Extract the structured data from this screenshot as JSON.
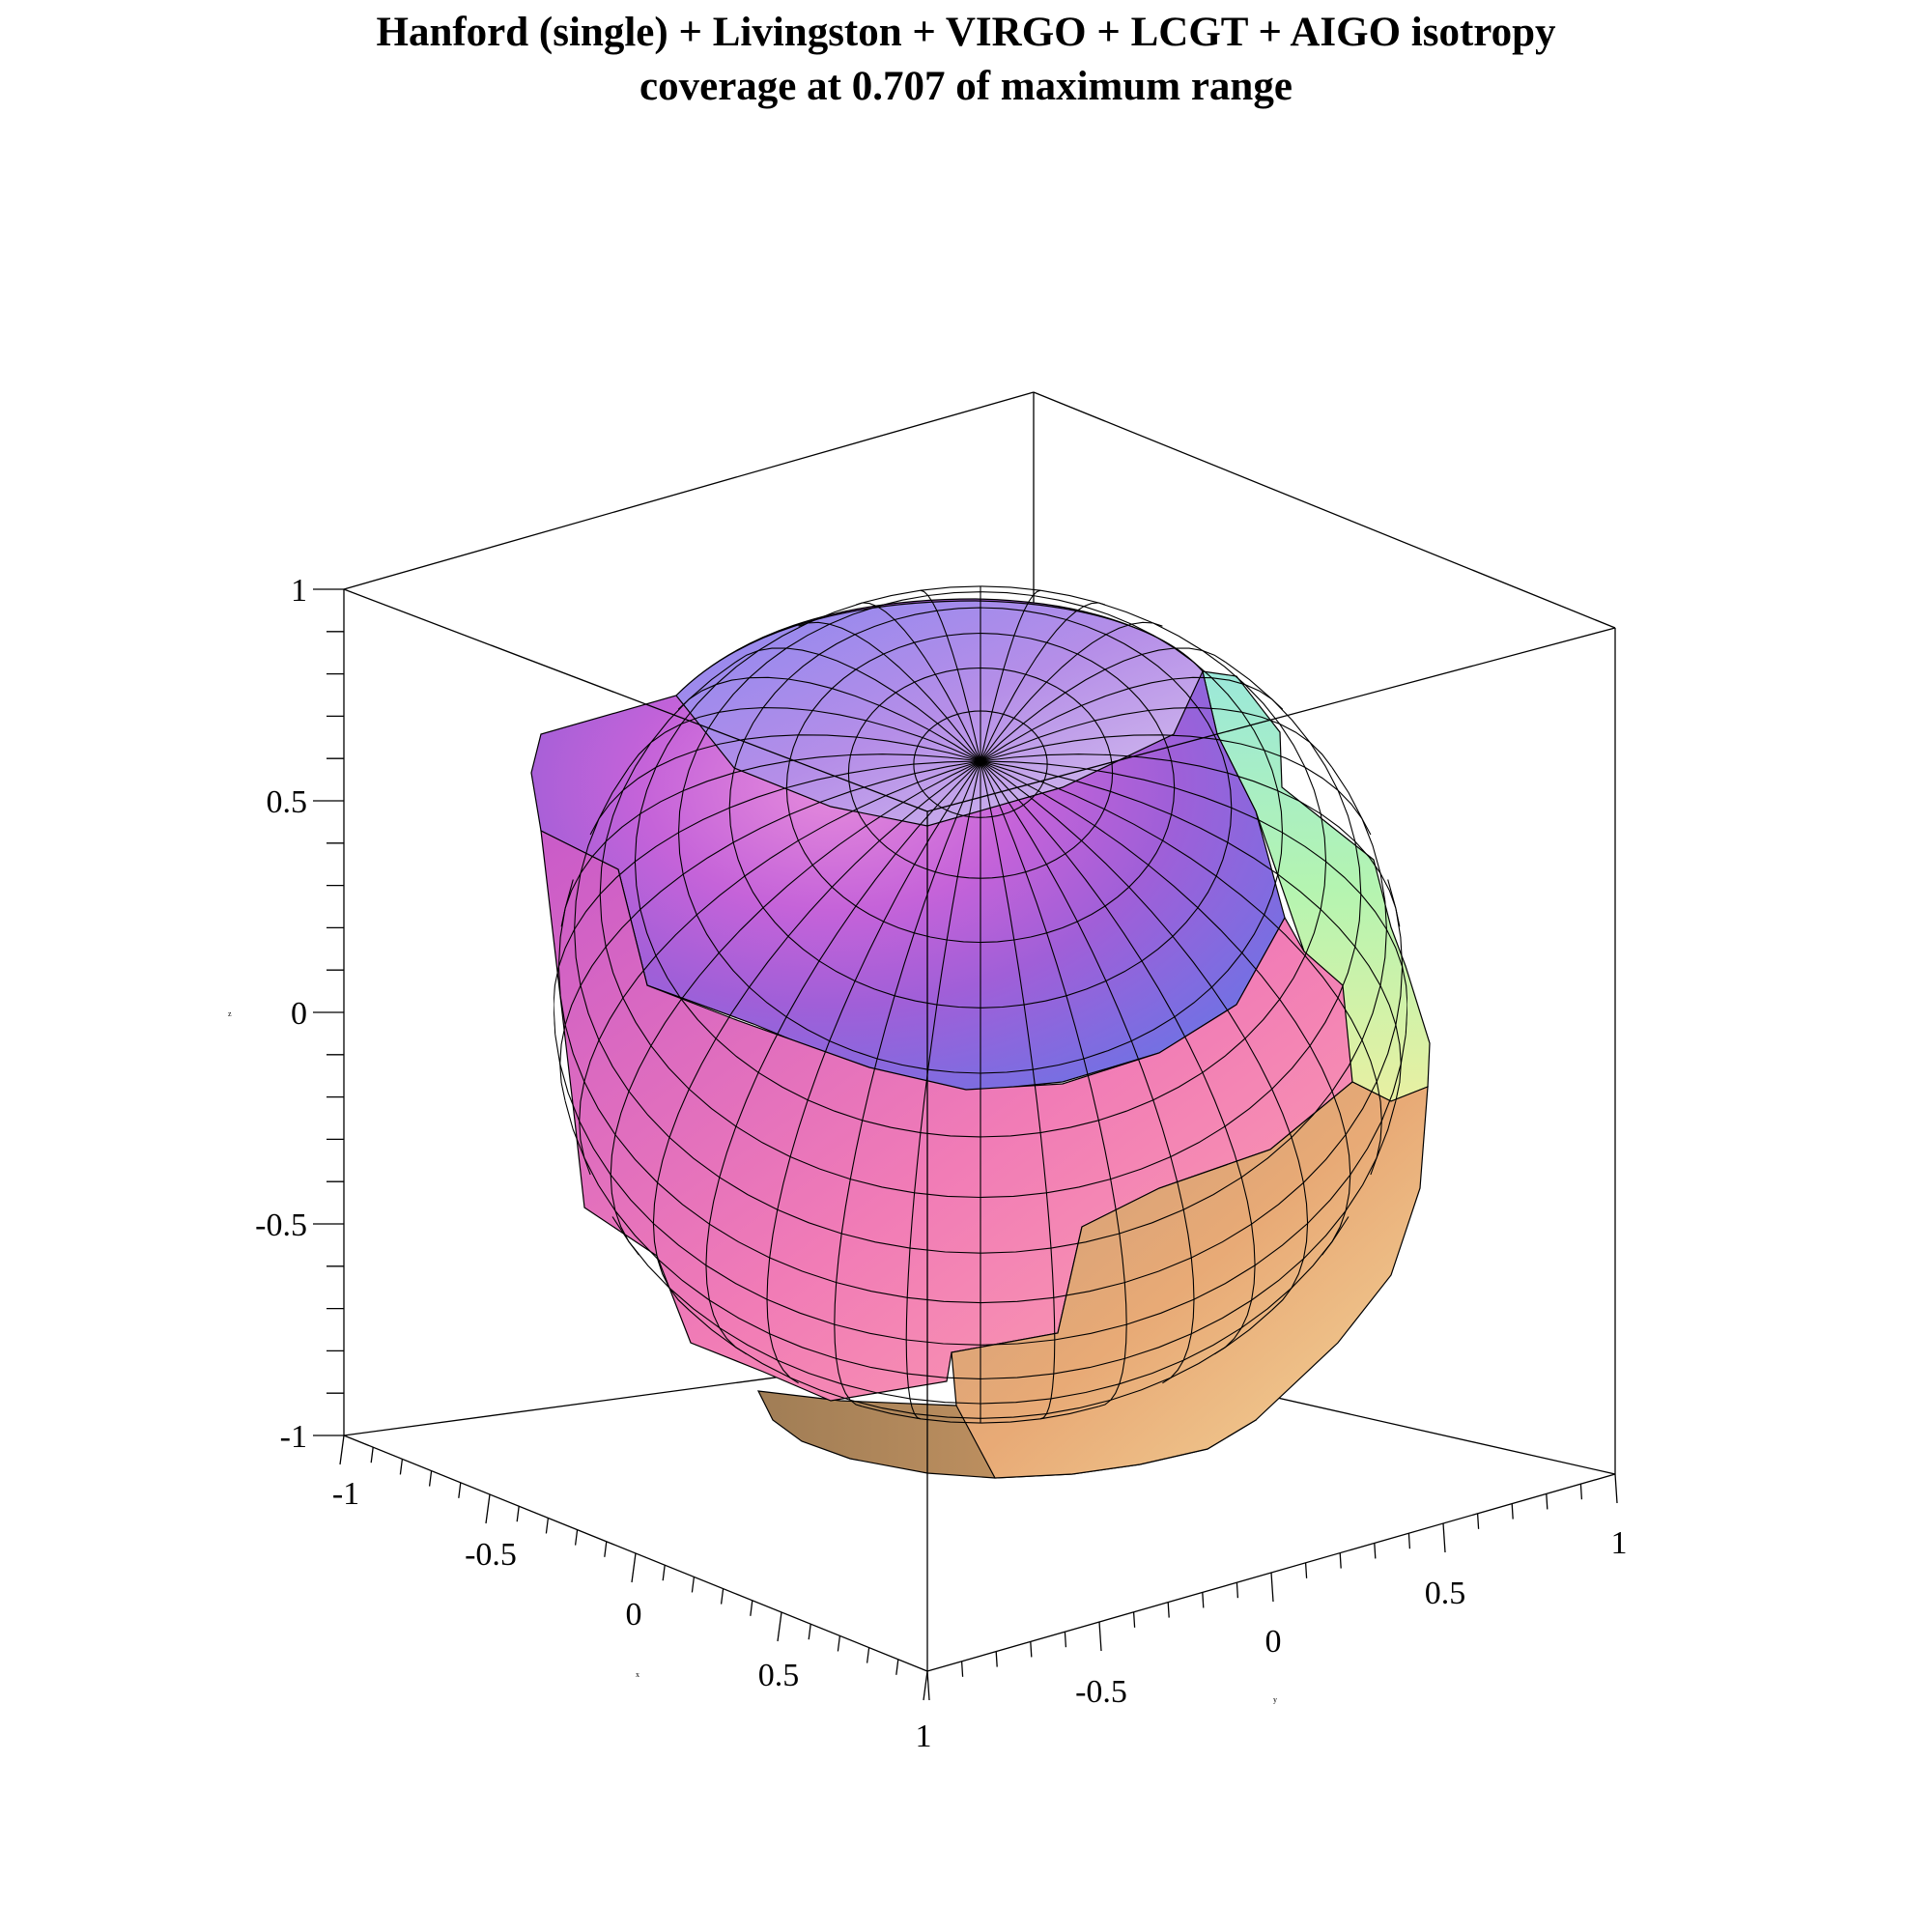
{
  "chart_data": {
    "type": "surface3d",
    "title_lines": [
      "Hanford (single) + Livingston + VIRGO + LCGT + AIGO isotropy",
      "coverage at 0.707 of maximum range"
    ],
    "xlabel": "x",
    "ylabel": "y",
    "zlabel": "z",
    "xlim": [
      -1,
      1
    ],
    "ylim": [
      -1,
      1
    ],
    "zlim": [
      -1,
      1
    ],
    "x_ticks": [
      "-1",
      "-0.5",
      "0",
      "0.5",
      "1"
    ],
    "y_ticks": [
      "-0.5",
      "0",
      "0.5",
      "1"
    ],
    "z_ticks": [
      "1",
      "0.5",
      "0",
      "-0.5",
      "-1"
    ],
    "surface": "approximately unit sphere, piecewise radius, cut on the +y side",
    "colormap": [
      "#7f86ef",
      "#b06ae6",
      "#e27fd8",
      "#f592b0",
      "#e6a07a",
      "#f2c98a",
      "#b9f5a6",
      "#9cefd4"
    ],
    "box": true,
    "grid": false
  }
}
